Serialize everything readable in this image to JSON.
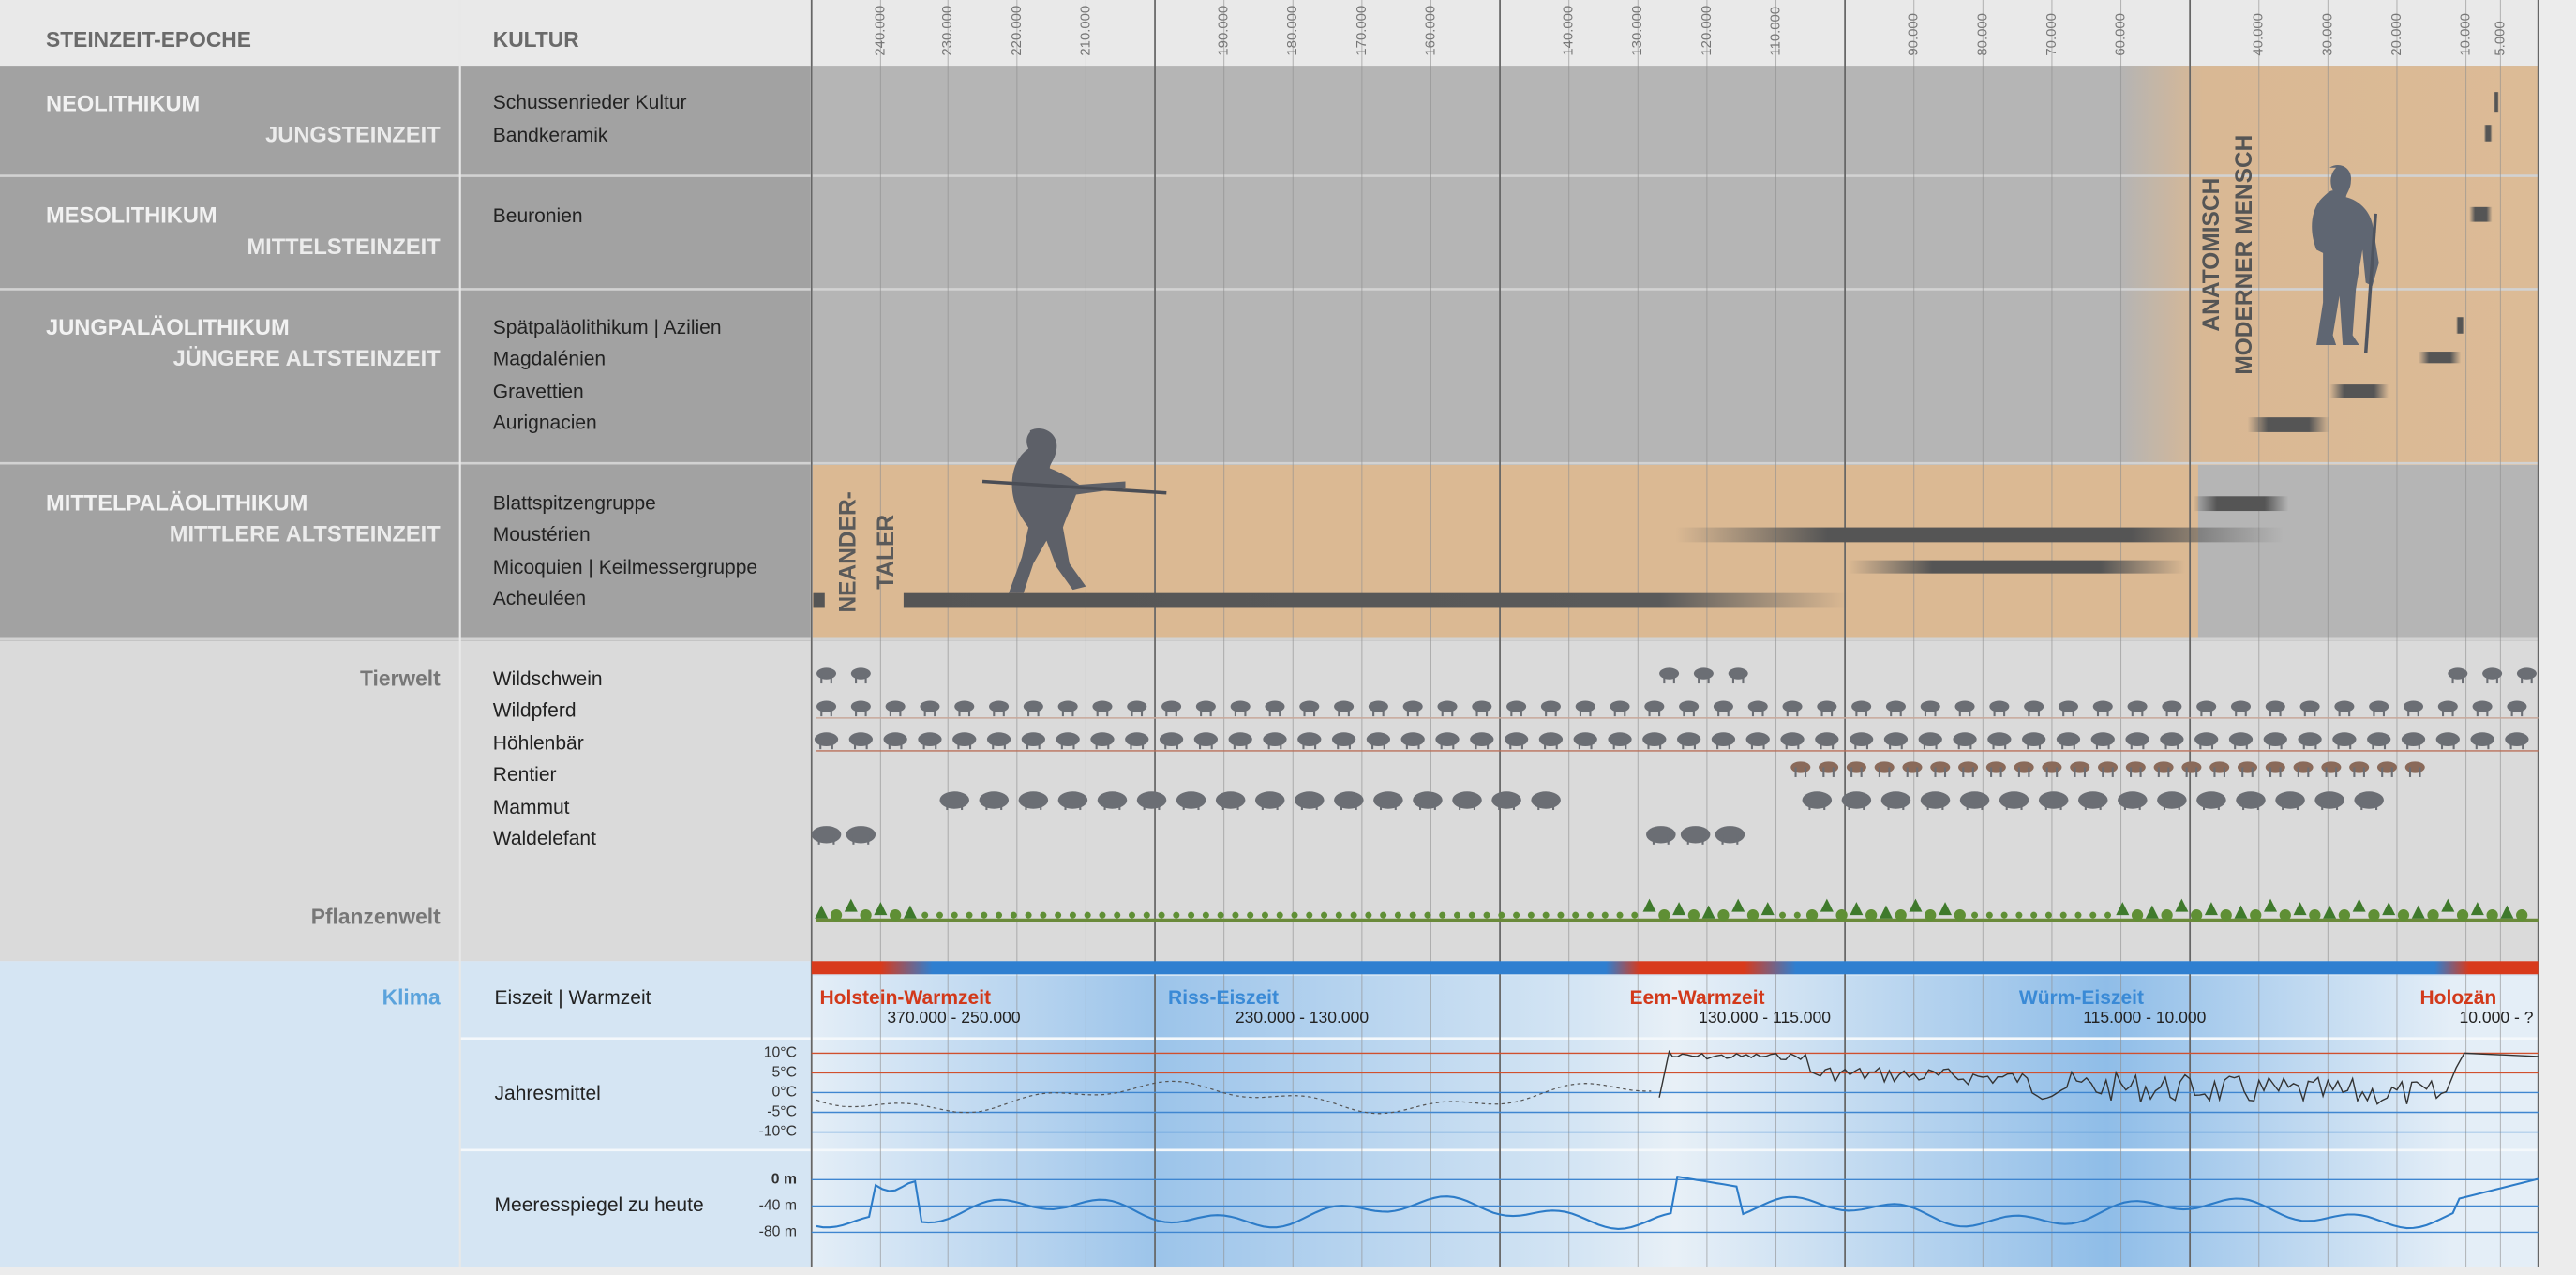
{
  "header": {
    "epoch": "STEINZEIT-EPOCHE",
    "culture": "KULTUR"
  },
  "timeline_ticks": [
    "240.000",
    "230.000",
    "220.000",
    "210.000",
    "190.000",
    "180.000",
    "170.000",
    "160.000",
    "140.000",
    "130.000",
    "120.000",
    "110.000",
    "90.000",
    "80.000",
    "70.000",
    "60.000",
    "40.000",
    "30.000",
    "20.000",
    "10.000",
    "5.000"
  ],
  "epochs": [
    {
      "name": "NEOLITHIKUM",
      "subtitle": "JUNGSTEINZEIT",
      "cultures": [
        "Schussenrieder Kultur",
        "Bandkeramik"
      ]
    },
    {
      "name": "MESOLITHIKUM",
      "subtitle": "MITTELSTEINZEIT",
      "cultures": [
        "Beuronien"
      ]
    },
    {
      "name": "JUNGPALÄOLITHIKUM",
      "subtitle": "JÜNGERE ALTSTEINZEIT",
      "cultures": [
        "Spätpaläolithikum | Azilien",
        "Magdalénien",
        "Gravettien",
        "Aurignacien"
      ]
    },
    {
      "name": "MITTELPALÄOLITHIKUM",
      "subtitle": "MITTLERE ALTSTEINZEIT",
      "cultures": [
        "Blattspitzengruppe",
        "Moustérien",
        "Micoquien | Keilmessergruppe",
        "Acheuléen"
      ]
    }
  ],
  "humans": {
    "neanderthal": [
      "NEANDER-",
      "TALER"
    ],
    "modern": [
      "ANATOMISCH",
      "MODERNER MENSCH"
    ]
  },
  "fauna": {
    "label": "Tierwelt",
    "animals": [
      "Wildschwein",
      "Wildpferd",
      "Höhlenbär",
      "Rentier",
      "Mammut",
      "Waldelefant"
    ]
  },
  "flora": {
    "label": "Pflanzenwelt"
  },
  "climate": {
    "label": "Klima",
    "row_label": "Eiszeit | Warmzeit",
    "periods": [
      {
        "name": "Holstein-Warmzeit",
        "range": "370.000 - 250.000"
      },
      {
        "name": "Riss-Eiszeit",
        "range": "230.000 - 130.000"
      },
      {
        "name": "Eem-Warmzeit",
        "range": "130.000 - 115.000"
      },
      {
        "name": "Würm-Eiszeit",
        "range": "115.000 - 10.000"
      },
      {
        "name": "Holozän",
        "range": "10.000 - ?"
      }
    ],
    "temperature": {
      "label": "Jahresmittel",
      "ticks": [
        "10°C",
        "5°C",
        "0°C",
        "-5°C",
        "-10°C"
      ]
    },
    "sea_level": {
      "label": "Meeresspiegel zu heute",
      "ticks": [
        "0 m",
        "-40 m",
        "-80 m"
      ]
    }
  }
}
